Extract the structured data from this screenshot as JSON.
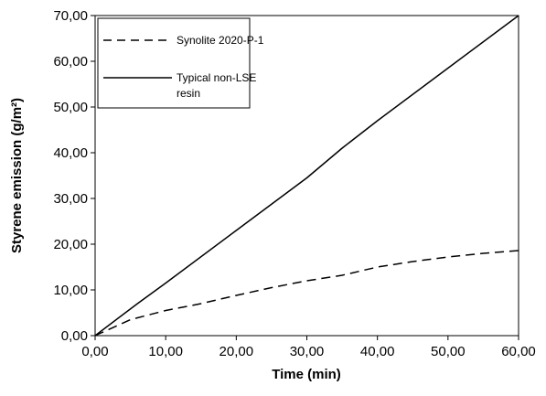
{
  "chart_data": {
    "type": "line",
    "xlabel": "Time (min)",
    "ylabel": "Styrene emission (g/m²)",
    "xlim": [
      0,
      60
    ],
    "ylim": [
      0,
      70
    ],
    "x_ticks": [
      "0,00",
      "10,00",
      "20,00",
      "30,00",
      "40,00",
      "50,00",
      "60,00"
    ],
    "y_ticks": [
      "0,00",
      "10,00",
      "20,00",
      "30,00",
      "40,00",
      "50,00",
      "60,00",
      "70,00"
    ],
    "grid": false,
    "legend_position": "top-left",
    "series": [
      {
        "name": "Synolite 2020-P-1",
        "style": "dashed",
        "color": "#000000",
        "x": [
          0,
          5,
          10,
          15,
          20,
          25,
          30,
          35,
          40,
          45,
          50,
          55,
          60
        ],
        "y": [
          0,
          3.5,
          5.5,
          7,
          8.8,
          10.5,
          12,
          13.2,
          15,
          16.2,
          17.2,
          18,
          18.6
        ]
      },
      {
        "name": "Typical non-LSE resin",
        "style": "solid",
        "color": "#000000",
        "x": [
          0,
          6,
          10,
          20,
          30,
          35,
          40,
          50,
          60
        ],
        "y": [
          0,
          7,
          11.5,
          23,
          34.5,
          41,
          47,
          58.5,
          70
        ]
      }
    ]
  }
}
